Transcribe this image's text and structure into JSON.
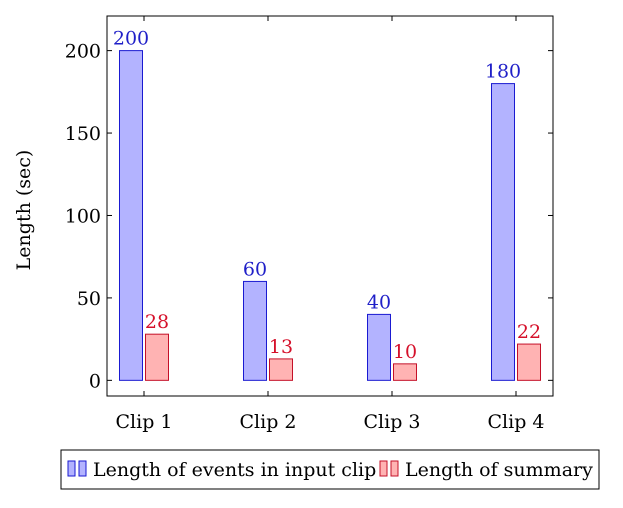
{
  "chart_data": {
    "type": "bar",
    "categories": [
      "Clip 1",
      "Clip 2",
      "Clip 3",
      "Clip 4"
    ],
    "series": [
      {
        "name": "Length of events in input clip",
        "values": [
          200,
          60,
          40,
          180
        ],
        "fill": "#b3b3ff",
        "stroke": "#1a1ad1",
        "label_color": "#1f1fc8"
      },
      {
        "name": "Length of summary",
        "values": [
          28,
          13,
          10,
          22
        ],
        "fill": "#ffb3b3",
        "stroke": "#c41028",
        "label_color": "#d5102a"
      }
    ],
    "ylabel": "Length (sec)",
    "ylim": [
      -9.5,
      221
    ],
    "yticks": [
      0,
      50,
      100,
      150,
      200
    ],
    "grid": false,
    "legend_position": "bottom"
  }
}
